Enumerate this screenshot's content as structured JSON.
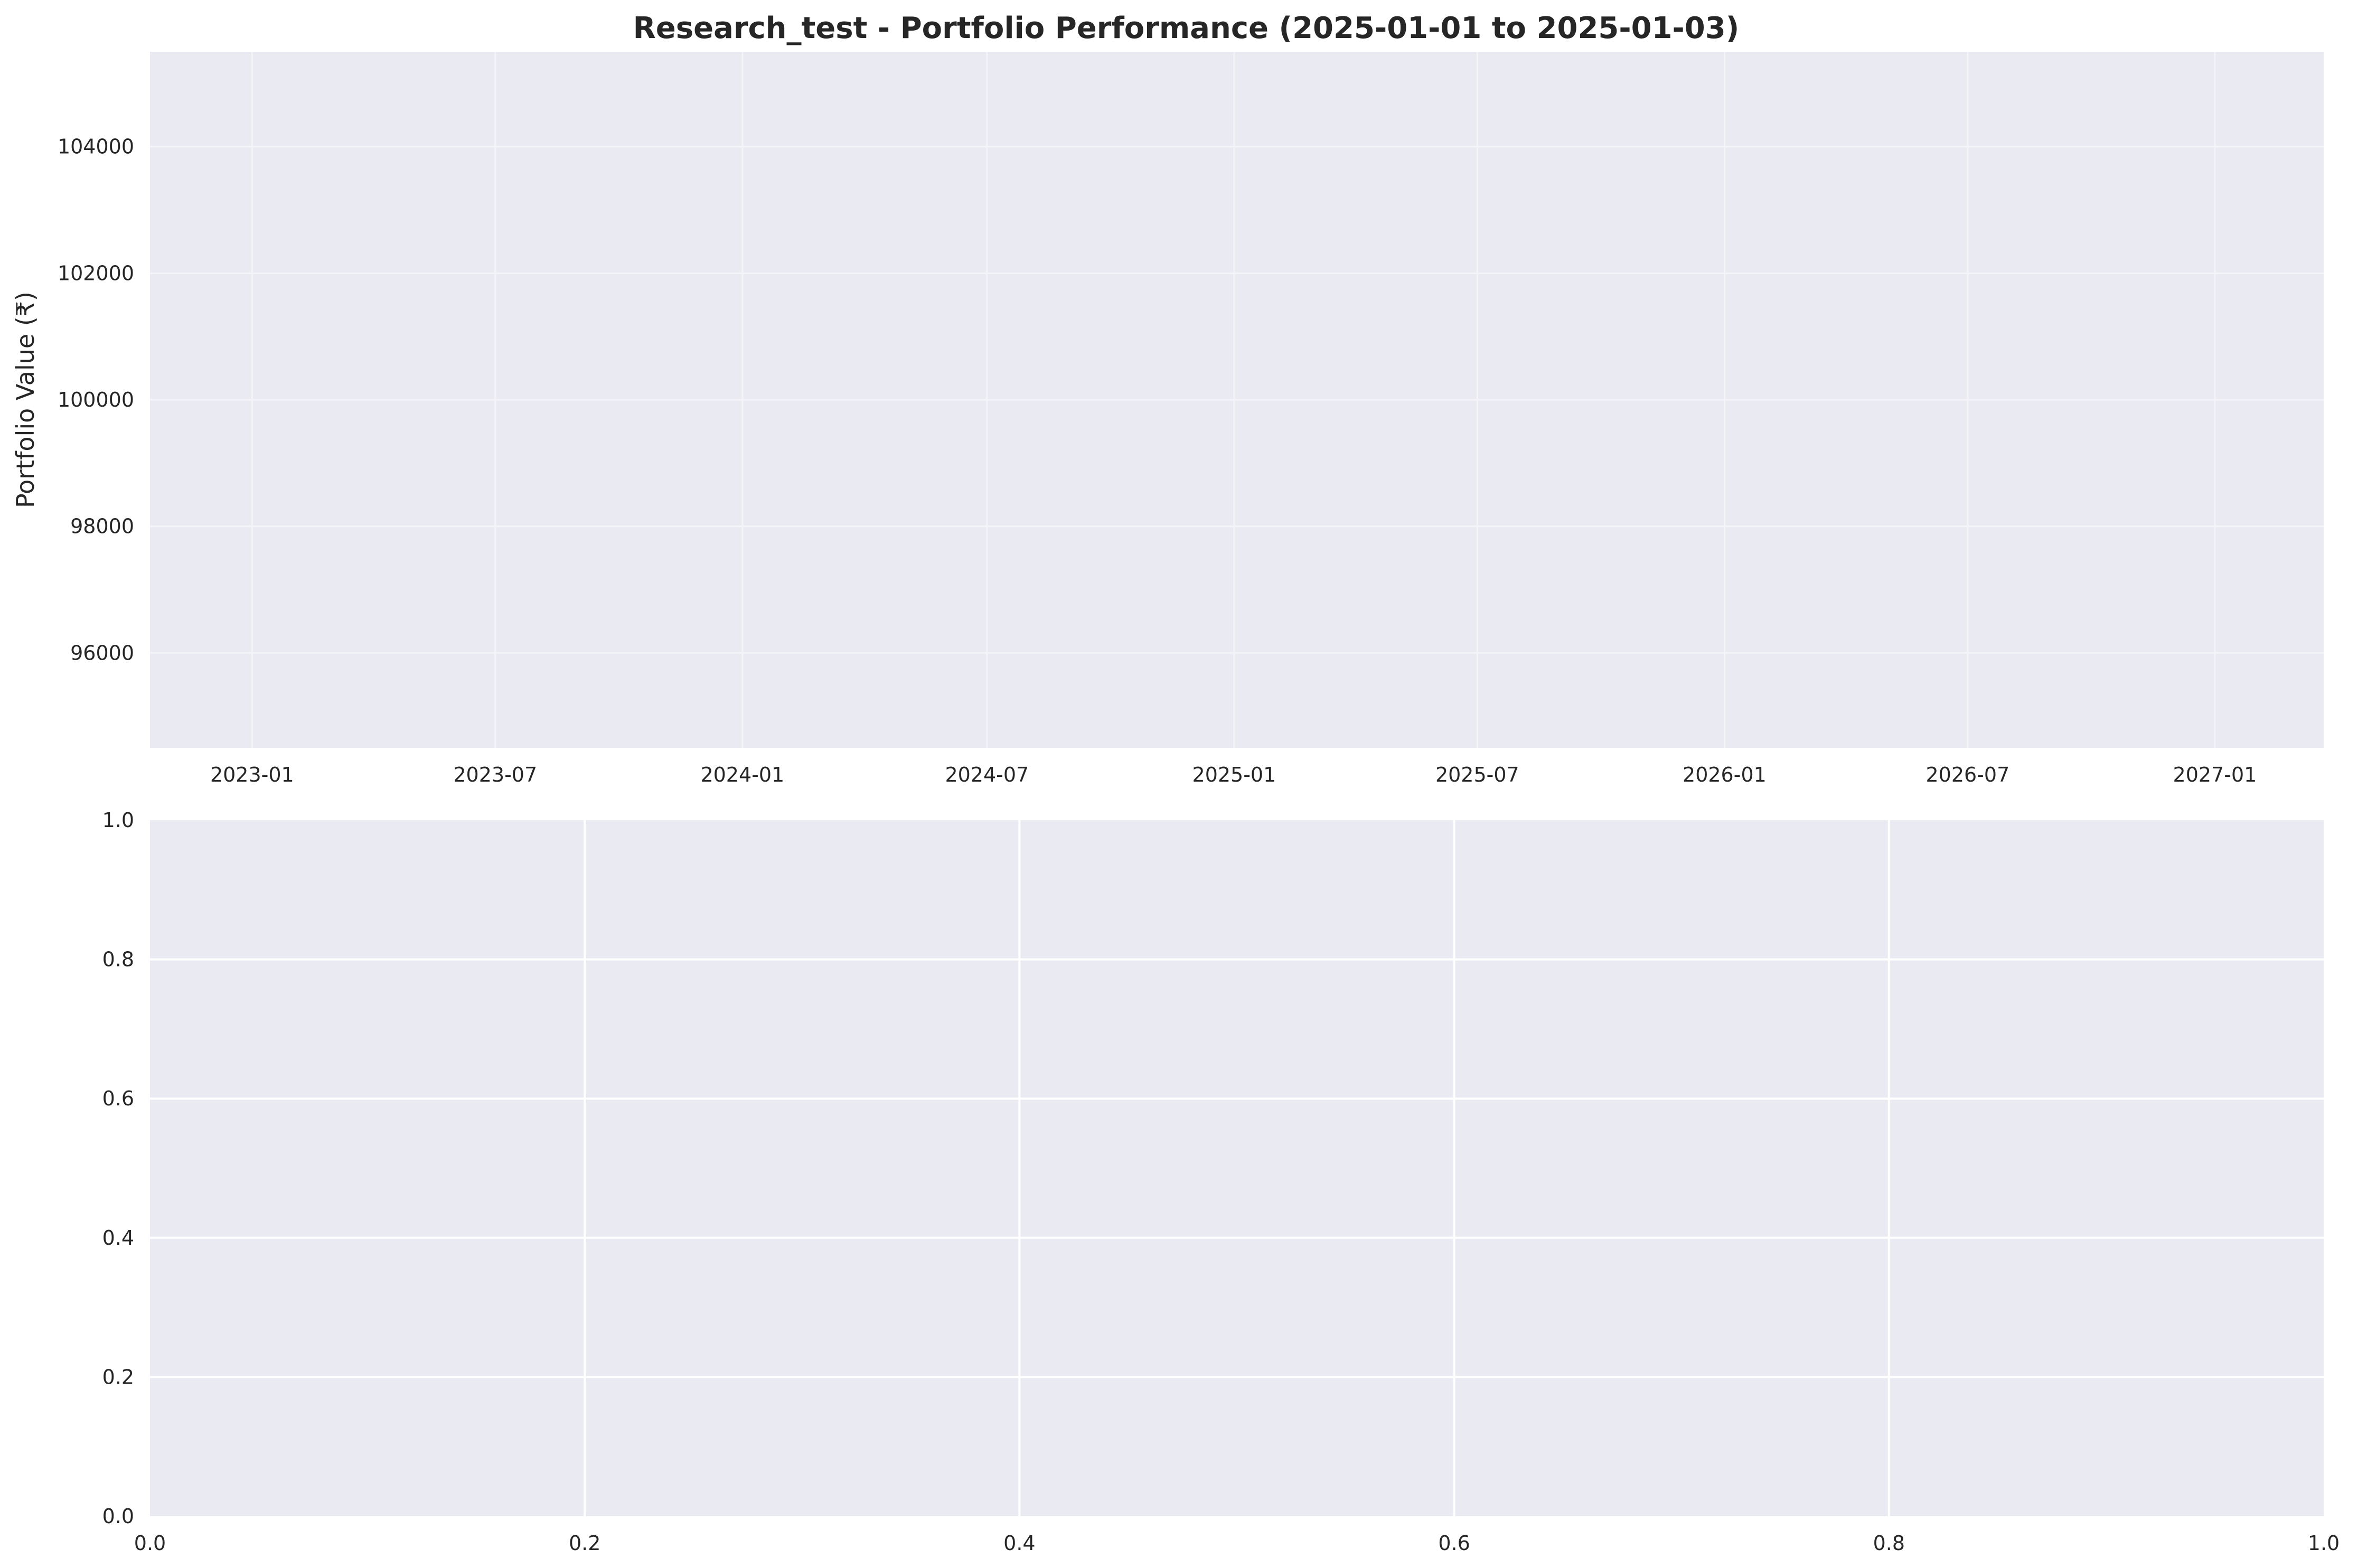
{
  "chart_data": [
    {
      "type": "line",
      "title": "Research_test - Portfolio Performance (2025-01-01 to 2025-01-03)",
      "xlabel": "",
      "ylabel": "Portfolio Value (₹)",
      "x_type": "date",
      "xlim": [
        "2022-10-17",
        "2027-03-23"
      ],
      "ylim": [
        94500,
        105500
      ],
      "x_ticks": [
        "2023-01",
        "2023-07",
        "2024-01",
        "2024-07",
        "2025-01",
        "2025-07",
        "2026-01",
        "2026-07",
        "2027-01"
      ],
      "y_ticks": [
        96000,
        98000,
        100000,
        102000,
        104000
      ],
      "grid": true,
      "series": []
    },
    {
      "type": "line",
      "title": "",
      "xlabel": "",
      "ylabel": "",
      "xlim": [
        0.0,
        1.0
      ],
      "ylim": [
        0.0,
        1.0
      ],
      "x_ticks": [
        "0.0",
        "0.2",
        "0.4",
        "0.6",
        "0.8",
        "1.0"
      ],
      "y_ticks": [
        "0.0",
        "0.2",
        "0.4",
        "0.6",
        "0.8",
        "1.0"
      ],
      "grid": true,
      "series": []
    }
  ],
  "colors": {
    "axes_background": "#eaeaf2",
    "grid_top": "#f4f4f8",
    "grid_bottom": "#ffffff",
    "text": "#262626"
  }
}
